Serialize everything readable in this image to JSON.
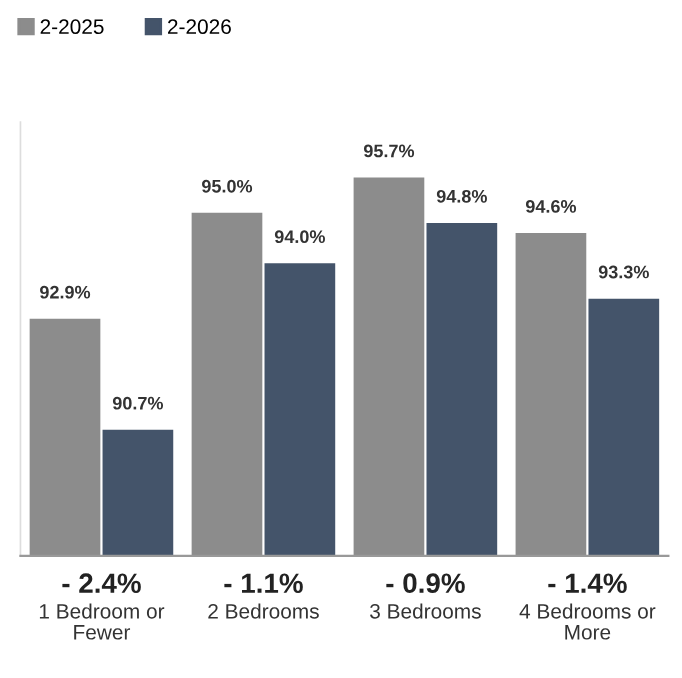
{
  "chart_data": {
    "type": "bar",
    "categories": [
      "1 Bedroom or\nFewer",
      "2 Bedrooms",
      "3 Bedrooms",
      "4 Bedrooms or\nMore"
    ],
    "series": [
      {
        "name": "2-2025",
        "color": "#8c8c8c",
        "values": [
          92.9,
          95.0,
          95.7,
          94.6
        ],
        "value_labels": [
          "92.9%",
          "95.0%",
          "95.7%",
          "94.6%"
        ]
      },
      {
        "name": "2-2026",
        "color": "#44546a",
        "values": [
          90.7,
          94.0,
          94.8,
          93.3
        ],
        "value_labels": [
          "90.7%",
          "94.0%",
          "94.8%",
          "93.3%"
        ]
      }
    ],
    "ylim": [
      88.2,
      96.8
    ],
    "tick_labels": "x",
    "legend": "top left",
    "grid": false,
    "annotations": [
      "- 2.4%",
      "- 1.1%",
      "- 0.9%",
      "- 1.4%"
    ]
  }
}
